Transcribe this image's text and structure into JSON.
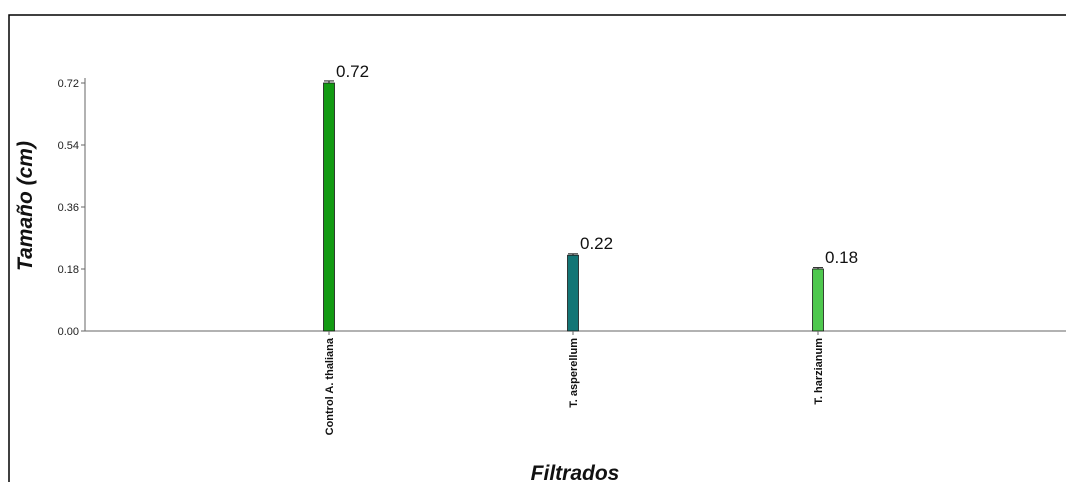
{
  "chart_data": {
    "type": "bar",
    "categories": [
      "Control A. thaliana",
      "T. asperellum",
      "T. harzianum"
    ],
    "values": [
      0.72,
      0.22,
      0.18
    ],
    "errors": [
      0.006,
      0.004,
      0.004
    ],
    "data_labels": [
      "0.72",
      "0.22",
      "0.18"
    ],
    "colors": [
      "#129a12",
      "#137575",
      "#4ec84e"
    ],
    "title": "",
    "xlabel": "Filtrados",
    "ylabel": "Tamaño (cm)",
    "ylim": [
      0,
      0.72
    ],
    "yticks": [
      0.0,
      0.18,
      0.36,
      0.54,
      0.72
    ],
    "ytick_labels": [
      "0.00",
      "0.18",
      "0.36",
      "0.54",
      "0.72"
    ],
    "grid": false,
    "legend": "none"
  }
}
